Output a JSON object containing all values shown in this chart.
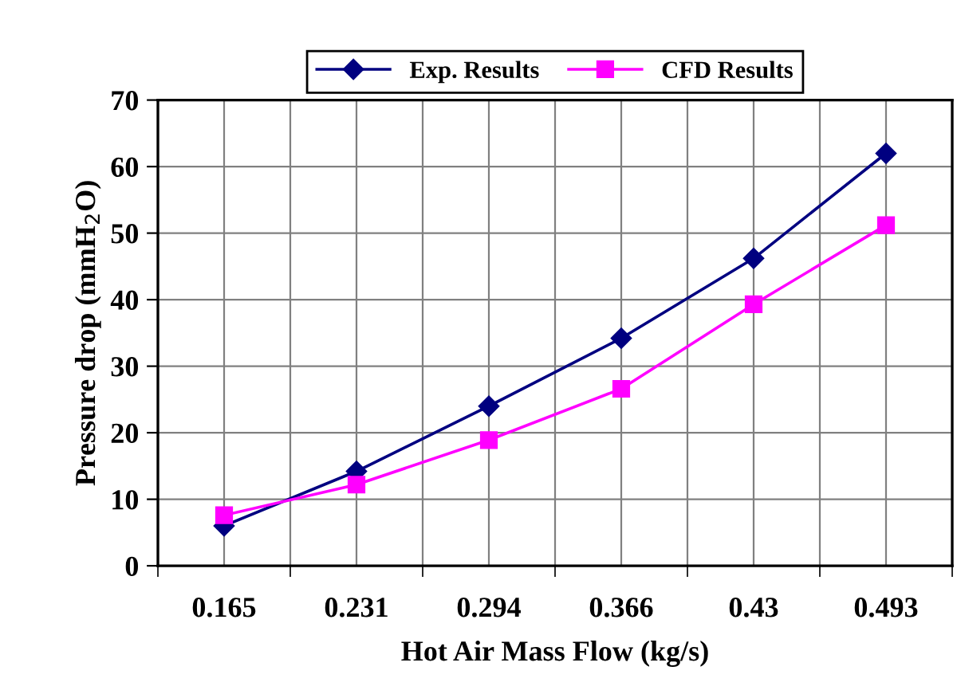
{
  "chart_data": {
    "type": "line",
    "xlabel": "Hot Air Mass Flow (kg/s)",
    "ylabel": "Pressure drop (mmH$_{2}$O)",
    "categories": [
      "0.165",
      "0.231",
      "0.294",
      "0.366",
      "0.43",
      "0.493"
    ],
    "series": [
      {
        "name": "Exp. Results",
        "color": "#000080",
        "marker": "diamond",
        "values": [
          6,
          14.2,
          24,
          34.2,
          46.2,
          62
        ]
      },
      {
        "name": "CFD Results",
        "color": "#ff00ff",
        "marker": "square",
        "values": [
          7.6,
          12.2,
          18.9,
          26.6,
          39.3,
          51.2
        ]
      }
    ],
    "ylim": [
      0,
      70
    ],
    "yticks": [
      0,
      10,
      20,
      30,
      40,
      50,
      60,
      70
    ],
    "grid": true,
    "legend": "top",
    "line_style": "solid"
  }
}
